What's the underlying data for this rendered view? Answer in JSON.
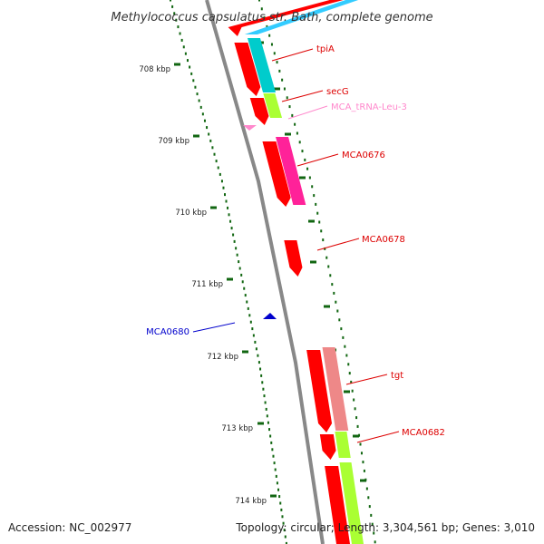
{
  "header": {
    "title": "Methylococcus capsulatus str. Bath, complete genome"
  },
  "footer": {
    "accession": "Accession: NC_002977",
    "summary": "Topology: circular; Length: 3,304,561 bp; Genes: 3,010"
  },
  "scale": {
    "ticks": [
      "708 kbp",
      "709 kbp",
      "710 kbp",
      "711 kbp",
      "712 kbp",
      "713 kbp",
      "714 kbp"
    ]
  },
  "colors": {
    "cds": "#ff0000",
    "backbone": "#888888",
    "minus_strand_label": "#0000cc",
    "trna": "#ff88cc",
    "cog_cyan": "#00cccc",
    "cog_blue": "#33ccff",
    "cog_green": "#aaff33",
    "cog_magenta": "#ff2299",
    "cog_salmon": "#ee8888",
    "tick_green": "#116611"
  },
  "genes": [
    {
      "name": "tpiA",
      "color": "#dd0000"
    },
    {
      "name": "secG",
      "color": "#dd0000"
    },
    {
      "name": "MCA_tRNA-Leu-3",
      "color": "#ff88cc"
    },
    {
      "name": "MCA0676",
      "color": "#dd0000"
    },
    {
      "name": "MCA0678",
      "color": "#dd0000"
    },
    {
      "name": "MCA0680",
      "color": "#0000cc"
    },
    {
      "name": "tgt",
      "color": "#dd0000"
    },
    {
      "name": "MCA0682",
      "color": "#dd0000"
    }
  ]
}
